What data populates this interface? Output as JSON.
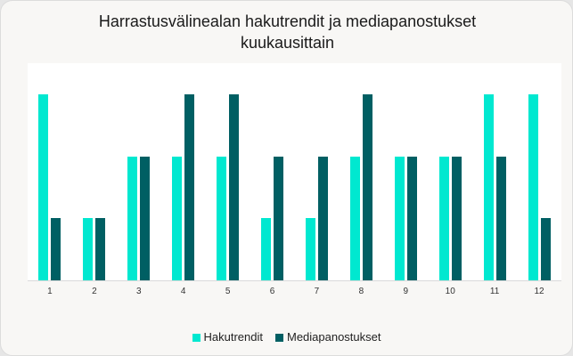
{
  "title": "Harrastusvälinealan hakutrendit ja mediapanostukset kuukausittain",
  "title_lines": [
    "Harrastusvälinealan hakutrendit ja mediapanostukset",
    "kuukausittain"
  ],
  "colors": {
    "hakutrendit": "#00e8d0",
    "mediapanostukset": "#005f63",
    "background": "#f8f7f5",
    "plot": "#ffffff"
  },
  "legend": [
    {
      "label": "Hakutrendit",
      "color": "#00e8d0"
    },
    {
      "label": "Mediapanostukset",
      "color": "#005f63"
    }
  ],
  "chart_data": {
    "type": "bar",
    "title": "Harrastusvälinealan hakutrendit ja mediapanostukset kuukausittain",
    "xlabel": "",
    "ylabel": "",
    "categories": [
      "1",
      "2",
      "3",
      "4",
      "5",
      "6",
      "7",
      "8",
      "9",
      "10",
      "11",
      "12"
    ],
    "series": [
      {
        "name": "Hakutrendit",
        "color": "#00e8d0",
        "values": [
          3,
          1,
          2,
          2,
          2,
          1,
          1,
          2,
          2,
          2,
          3,
          3
        ]
      },
      {
        "name": "Mediapanostukset",
        "color": "#005f63",
        "values": [
          1,
          1,
          2,
          3,
          3,
          2,
          2,
          3,
          2,
          2,
          2,
          1
        ]
      }
    ],
    "ylim": [
      0,
      3.5
    ],
    "y_axis_visible": false,
    "grid": false,
    "legend_position": "bottom"
  }
}
